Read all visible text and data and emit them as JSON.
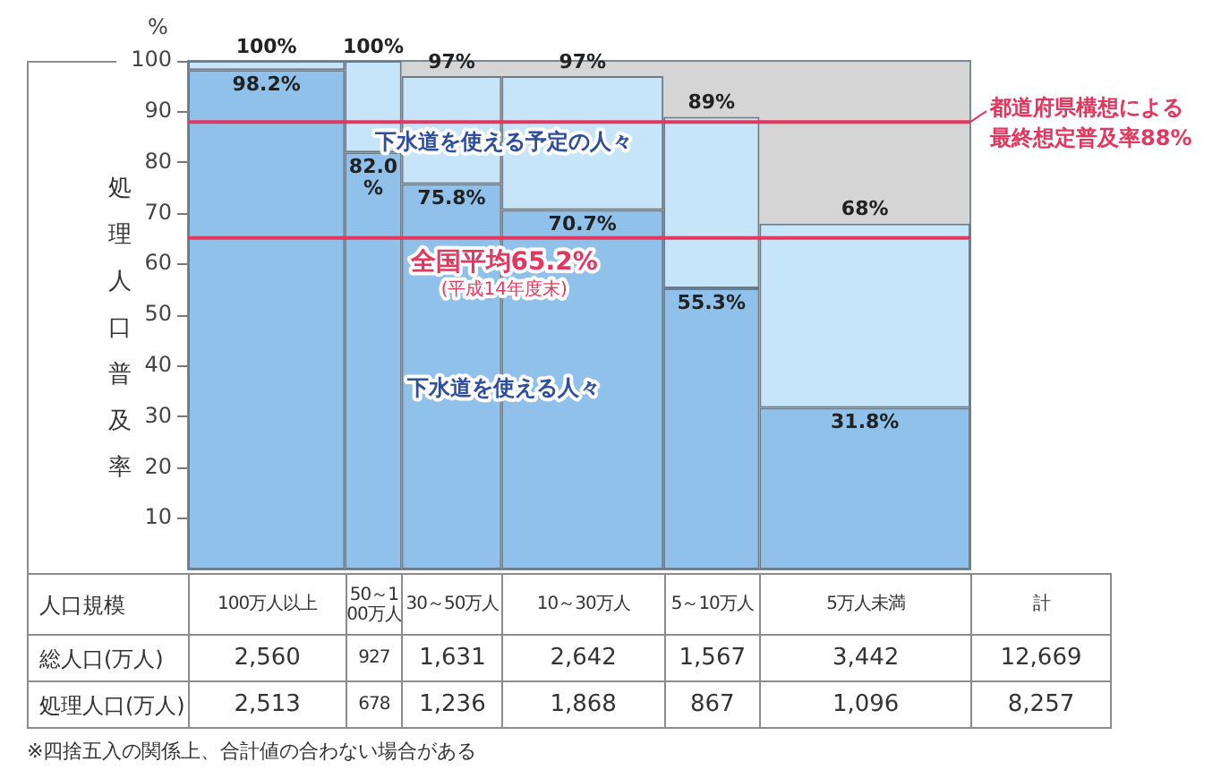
{
  "chart_data": [
    {
      "type": "bar",
      "stacked": true,
      "tick_labels": "y",
      "categories": [
        null,
        null,
        null,
        null,
        null,
        null
      ],
      "ylabel": "処理人口普及率",
      "ylim": [
        0,
        100
      ],
      "yticks": [
        10,
        20,
        30,
        40,
        50,
        60,
        70,
        80,
        90,
        100
      ],
      "series": [
        {
          "name": "下水道を使える人々",
          "color": "#8fc1ea",
          "values": [
            98.2,
            82.0,
            75.8,
            70.7,
            55.3,
            31.8
          ],
          "value_labels": [
            "98.2%",
            "82.0%",
            "75.8%",
            "70.7%",
            "55.3%",
            "31.8%"
          ]
        },
        {
          "name": "下水道を使える予定の人々",
          "color": "#c6e5f8",
          "values": [
            1.8,
            18.0,
            21.2,
            26.3,
            33.7,
            36.2
          ]
        }
      ],
      "totals": [
        "100%",
        "100%",
        "97%",
        "97%",
        "89%",
        "68%"
      ],
      "ref_lines": [
        {
          "axis": "y",
          "value": 88,
          "label": "都道府県構想による最終想定普及率88%",
          "color": "#e2375f"
        },
        {
          "axis": "y",
          "value": 65.2,
          "label": "全国平均65.2%\n(平成14年度末)",
          "color": "#e2375f"
        }
      ],
      "annotations": [
        "%"
      ]
    },
    {
      "type": "other",
      "xlabel": "人口規模",
      "categories": [
        "100万人以上",
        "50～100万人",
        "30～50万人",
        "10～30万人",
        "5～10万人",
        "5万人未満",
        "計"
      ],
      "series": [
        {
          "name": "総人口(万人)",
          "values": [
            2560,
            927,
            1631,
            2642,
            1567,
            3442,
            12669
          ],
          "value_labels": [
            "2,560",
            "927",
            "1,631",
            "2,642",
            "1,567",
            "3,442",
            "12,669"
          ]
        },
        {
          "name": "処理人口(万人)",
          "values": [
            2513,
            678,
            1236,
            1868,
            867,
            1096,
            8257
          ],
          "value_labels": [
            "2,513",
            "678",
            "1,236",
            "1,868",
            "867",
            "1,096",
            "8,257"
          ]
        }
      ],
      "annotations": [
        "※四捨五入の関係上、合計値の合わない場合がある"
      ]
    }
  ]
}
